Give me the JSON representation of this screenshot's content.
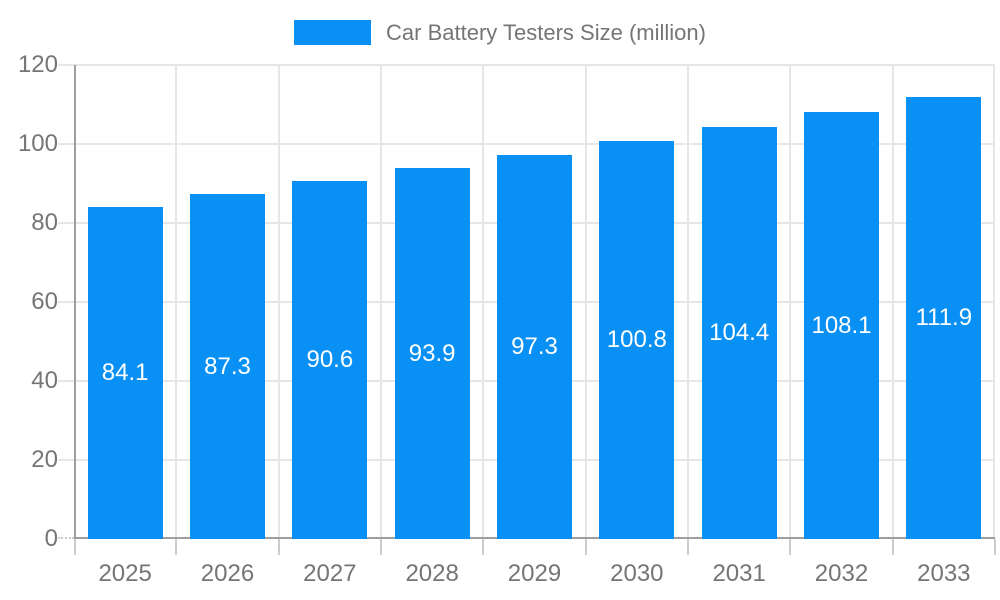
{
  "legend": {
    "label": "Car Battery Testers Size (million)",
    "swatch_color": "#0990f5"
  },
  "chart_data": {
    "type": "bar",
    "title": "Car Battery Testers Size (million)",
    "categories": [
      "2025",
      "2026",
      "2027",
      "2028",
      "2029",
      "2030",
      "2031",
      "2032",
      "2033"
    ],
    "values": [
      84.1,
      87.3,
      90.6,
      93.9,
      97.3,
      100.8,
      104.4,
      108.1,
      111.9
    ],
    "value_labels": [
      "84.1",
      "87.3",
      "90.6",
      "93.9",
      "97.3",
      "100.8",
      "104.4",
      "108.1",
      "111.9"
    ],
    "xlabel": "",
    "ylabel": "",
    "ylim": [
      0,
      120
    ],
    "yticks": [
      0,
      20,
      40,
      60,
      80,
      100,
      120
    ],
    "grid": true,
    "legend_position": "top",
    "colors": {
      "bar": "#0990f5",
      "bar_value_text": "#ffffff",
      "axis_line": "#9e9e9e",
      "gridline": "#e6e6e6",
      "tick": "#cccccc",
      "tick_label": "#757575",
      "legend_text": "#757575",
      "background": "#ffffff"
    }
  }
}
